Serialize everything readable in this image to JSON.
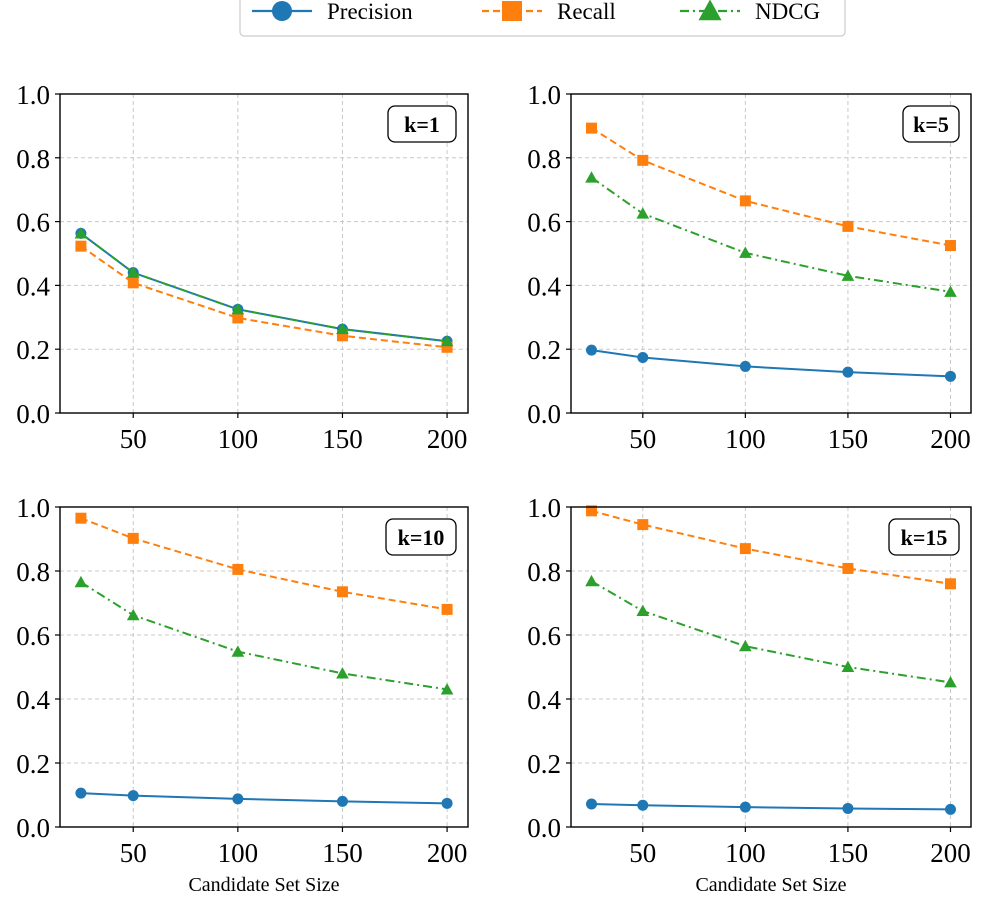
{
  "colors": {
    "precision": "#1f77b4",
    "recall": "#ff7f0e",
    "ndcg": "#2ca02c",
    "grid": "#c8c8c8",
    "axis": "#000000"
  },
  "legend": {
    "items": [
      {
        "key": "precision",
        "label": "Precision",
        "marker": "circle",
        "dash": "solid"
      },
      {
        "key": "recall",
        "label": "Recall",
        "marker": "square",
        "dash": "dashed"
      },
      {
        "key": "ndcg",
        "label": "NDCG",
        "marker": "triangle",
        "dash": "dashdot"
      }
    ]
  },
  "chart_data": [
    {
      "type": "line",
      "label": "k=1",
      "xlabel": "",
      "x": [
        25,
        50,
        100,
        150,
        200
      ],
      "xticks": [
        50,
        100,
        150,
        200
      ],
      "xlim": [
        15,
        210
      ],
      "ylim": [
        0.0,
        1.0
      ],
      "yticks": [
        "0.0",
        "0.2",
        "0.4",
        "0.6",
        "0.8",
        "1.0"
      ],
      "grid": true,
      "series": [
        {
          "name": "Precision",
          "key": "precision",
          "values": [
            0.563,
            0.44,
            0.325,
            0.263,
            0.225
          ]
        },
        {
          "name": "Recall",
          "key": "recall",
          "values": [
            0.523,
            0.408,
            0.298,
            0.242,
            0.206
          ]
        },
        {
          "name": "NDCG",
          "key": "ndcg",
          "values": [
            0.563,
            0.44,
            0.325,
            0.263,
            0.225
          ]
        }
      ]
    },
    {
      "type": "line",
      "label": "k=5",
      "xlabel": "",
      "x": [
        25,
        50,
        100,
        150,
        200
      ],
      "xticks": [
        50,
        100,
        150,
        200
      ],
      "xlim": [
        15,
        210
      ],
      "ylim": [
        0.0,
        1.0
      ],
      "yticks": [
        "0.0",
        "0.2",
        "0.4",
        "0.6",
        "0.8",
        "1.0"
      ],
      "grid": true,
      "series": [
        {
          "name": "Precision",
          "key": "precision",
          "values": [
            0.197,
            0.174,
            0.146,
            0.128,
            0.115
          ]
        },
        {
          "name": "Recall",
          "key": "recall",
          "values": [
            0.893,
            0.792,
            0.665,
            0.585,
            0.525
          ]
        },
        {
          "name": "NDCG",
          "key": "ndcg",
          "values": [
            0.738,
            0.625,
            0.502,
            0.43,
            0.38
          ]
        }
      ]
    },
    {
      "type": "line",
      "label": "k=10",
      "xlabel": "Candidate Set Size",
      "x": [
        25,
        50,
        100,
        150,
        200
      ],
      "xticks": [
        50,
        100,
        150,
        200
      ],
      "xlim": [
        15,
        210
      ],
      "ylim": [
        0.0,
        1.0
      ],
      "yticks": [
        "0.0",
        "0.2",
        "0.4",
        "0.6",
        "0.8",
        "1.0"
      ],
      "grid": true,
      "series": [
        {
          "name": "Precision",
          "key": "precision",
          "values": [
            0.106,
            0.098,
            0.088,
            0.08,
            0.074
          ]
        },
        {
          "name": "Recall",
          "key": "recall",
          "values": [
            0.965,
            0.902,
            0.805,
            0.735,
            0.68
          ]
        },
        {
          "name": "NDCG",
          "key": "ndcg",
          "values": [
            0.765,
            0.662,
            0.548,
            0.48,
            0.43
          ]
        }
      ]
    },
    {
      "type": "line",
      "label": "k=15",
      "xlabel": "Candidate Set Size",
      "x": [
        25,
        50,
        100,
        150,
        200
      ],
      "xticks": [
        50,
        100,
        150,
        200
      ],
      "xlim": [
        15,
        210
      ],
      "ylim": [
        0.0,
        1.0
      ],
      "yticks": [
        "0.0",
        "0.2",
        "0.4",
        "0.6",
        "0.8",
        "1.0"
      ],
      "grid": true,
      "series": [
        {
          "name": "Precision",
          "key": "precision",
          "values": [
            0.072,
            0.068,
            0.062,
            0.058,
            0.055
          ]
        },
        {
          "name": "Recall",
          "key": "recall",
          "values": [
            0.988,
            0.945,
            0.87,
            0.808,
            0.76
          ]
        },
        {
          "name": "NDCG",
          "key": "ndcg",
          "values": [
            0.768,
            0.675,
            0.565,
            0.5,
            0.452
          ]
        }
      ]
    }
  ]
}
